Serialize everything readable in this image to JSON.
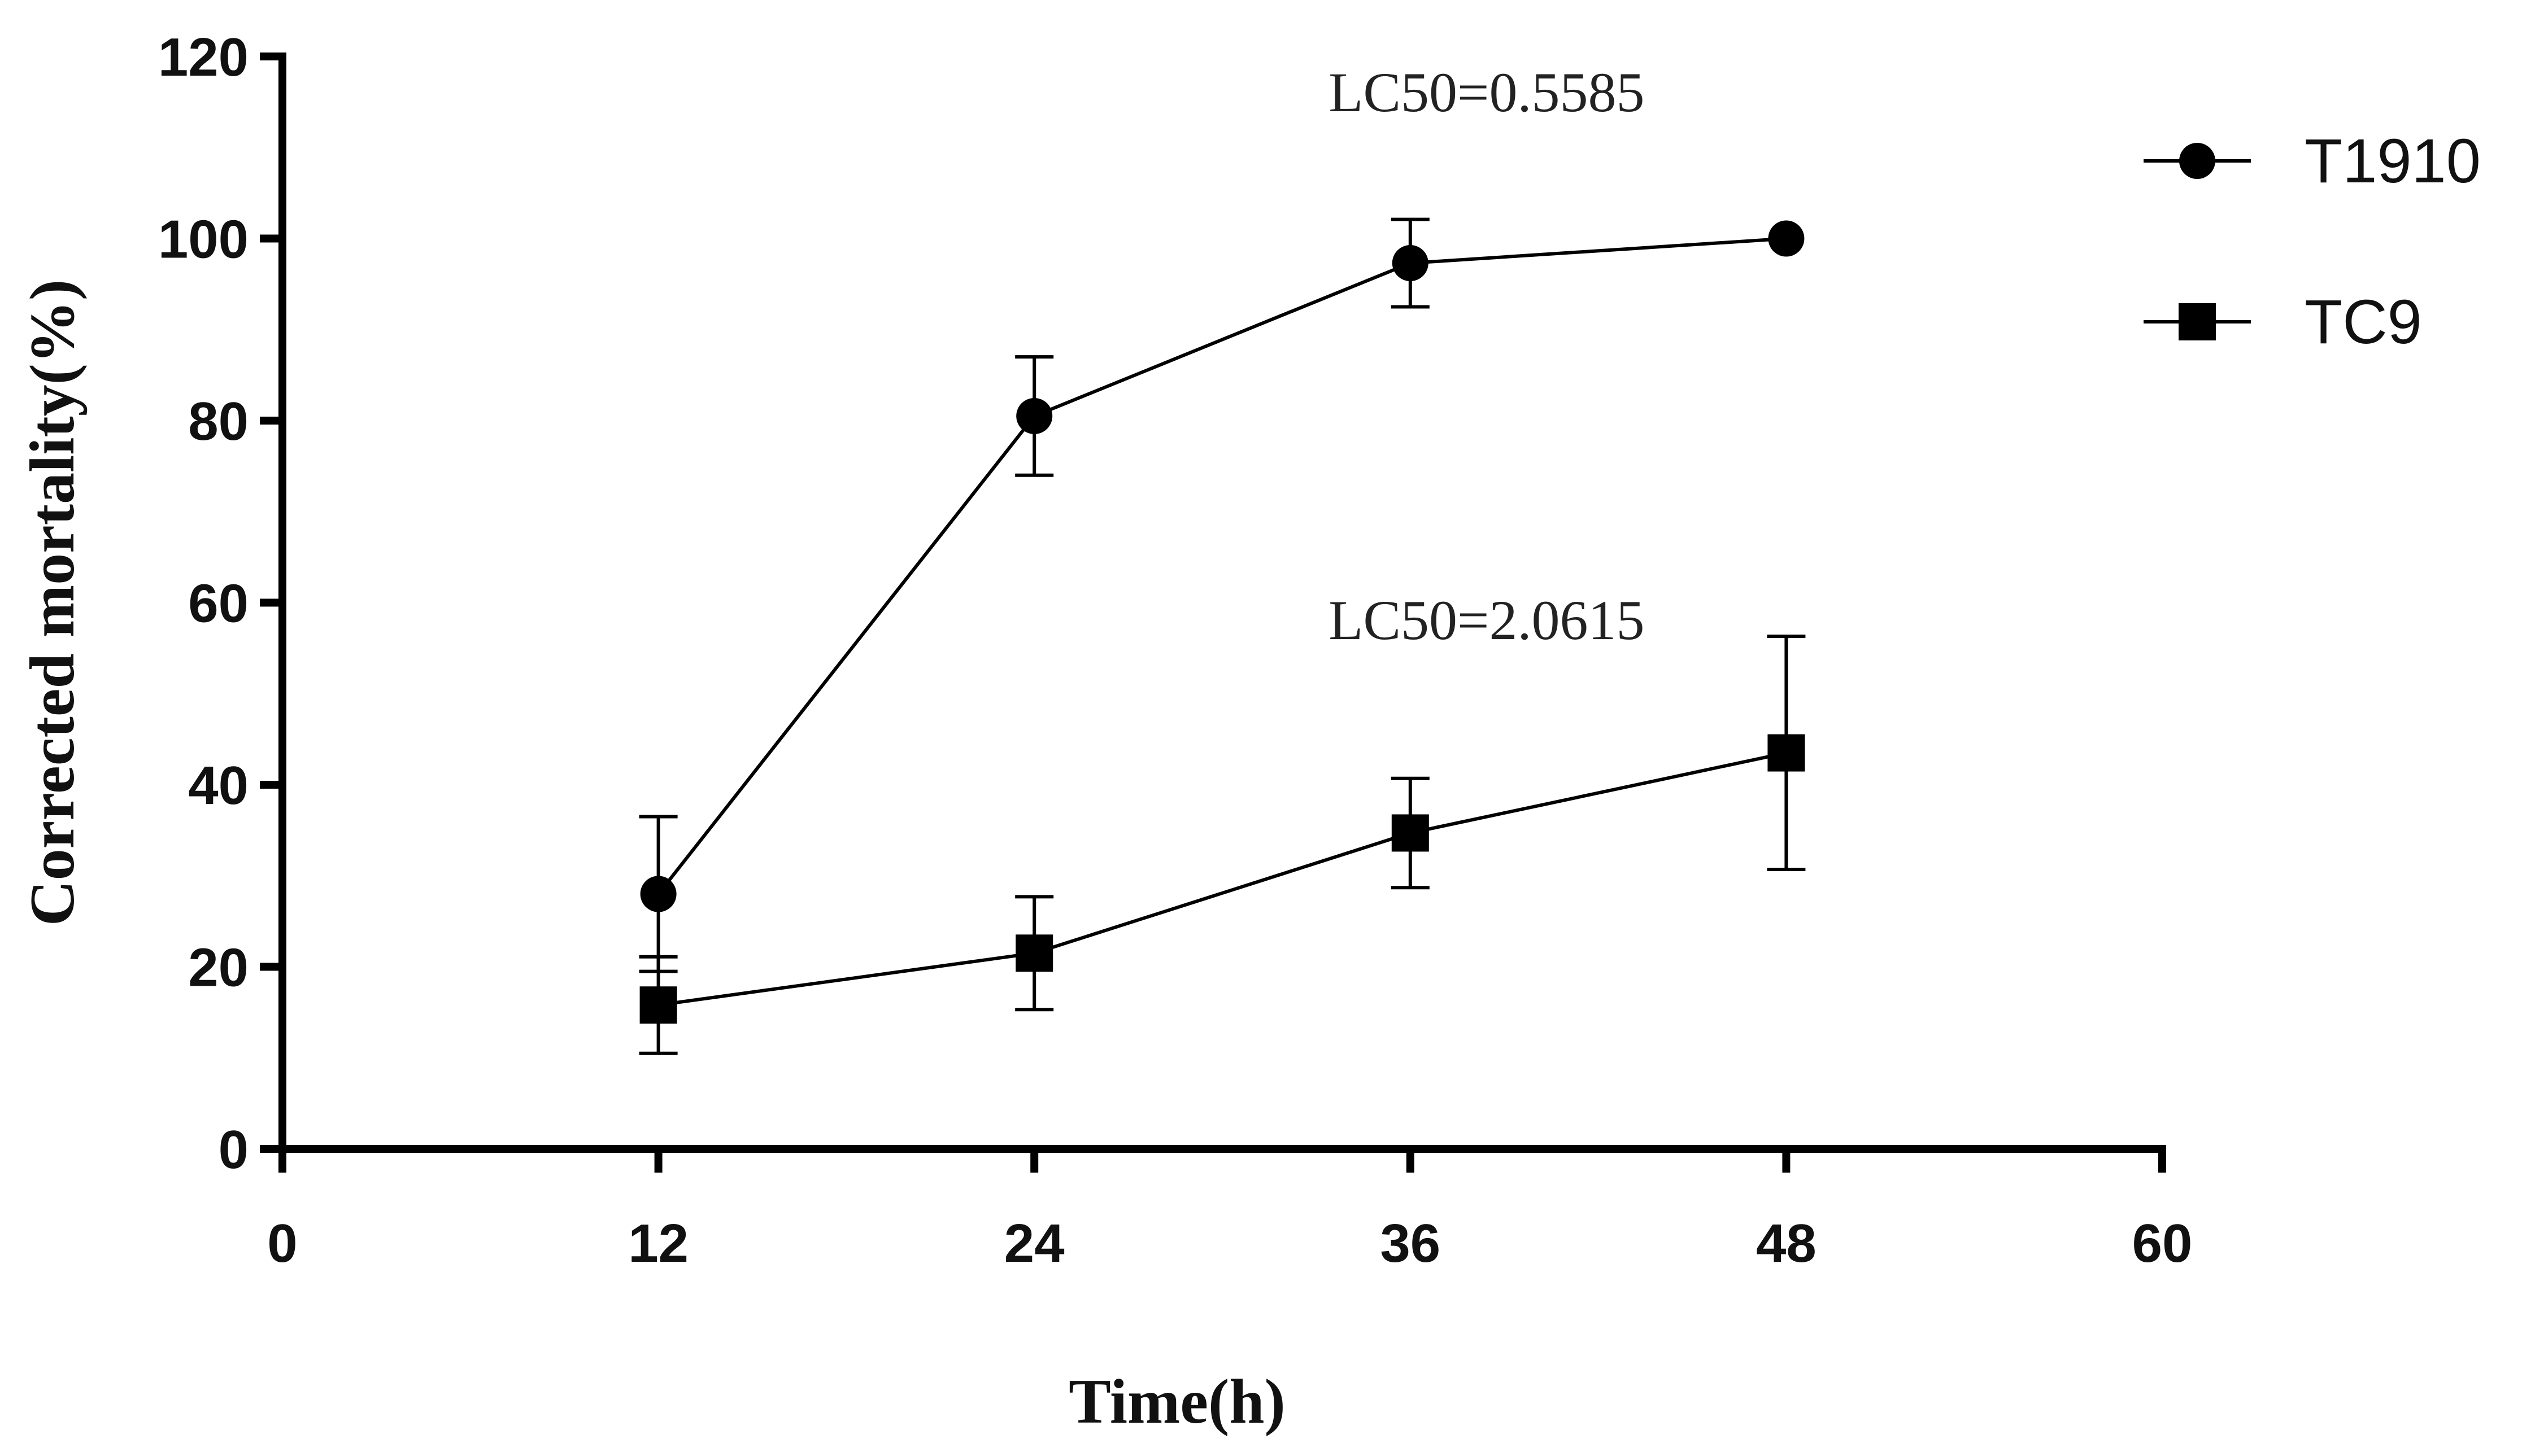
{
  "chart_data": {
    "type": "line",
    "xlabel": "Time(h)",
    "ylabel": "Corrected mortality(%)",
    "xlim": [
      0,
      60
    ],
    "ylim": [
      0,
      120
    ],
    "xticks": [
      0,
      12,
      24,
      36,
      48,
      60
    ],
    "yticks": [
      0,
      20,
      40,
      60,
      80,
      100,
      120
    ],
    "grid": false,
    "legend_position": "top-right",
    "series": [
      {
        "name": "T1910",
        "marker": "circle",
        "color": "#000000",
        "x": [
          12,
          24,
          36,
          48
        ],
        "y": [
          28,
          80.5,
          97.3,
          100
        ],
        "error": [
          8.5,
          6.5,
          4.8,
          0
        ]
      },
      {
        "name": "TC9",
        "marker": "square",
        "color": "#000000",
        "x": [
          12,
          24,
          36,
          48
        ],
        "y": [
          15.8,
          21.5,
          34.7,
          43.5
        ],
        "error": [
          5.3,
          6.2,
          6.0,
          12.8
        ]
      }
    ],
    "annotations": [
      {
        "text": "LC50=0.5585",
        "x": 37,
        "y": 114
      },
      {
        "text": "LC50=2.0615",
        "x": 37,
        "y": 56
      }
    ]
  }
}
